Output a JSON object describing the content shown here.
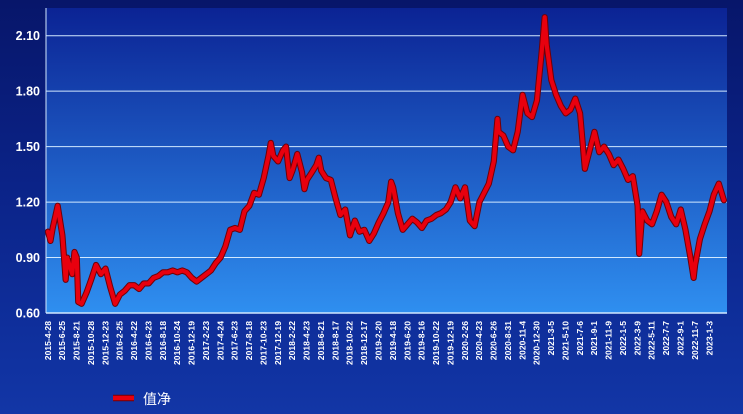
{
  "chart_data": {
    "type": "line",
    "y_ticks": [
      "0.60",
      "0.90",
      "1.20",
      "1.50",
      "1.80",
      "2.10"
    ],
    "ylim": [
      0.6,
      2.25
    ],
    "grid": true,
    "legend_position": "bottom-left",
    "x_ticks": [
      "2015-4-28",
      "2015-6-25",
      "2015-8-21",
      "2015-10-28",
      "2015-12-23",
      "2016-2-25",
      "2016-4-22",
      "2016-6-23",
      "2016-8-18",
      "2016-10-24",
      "2016-12-19",
      "2017-2-23",
      "2017-4-24",
      "2017-6-23",
      "2017-8-18",
      "2017-10-23",
      "2017-12-19",
      "2018-2-22",
      "2018-4-23",
      "2018-6-21",
      "2018-8-17",
      "2018-10-22",
      "2018-12-17",
      "2019-2-20",
      "2019-4-18",
      "2019-6-20",
      "2019-8-16",
      "2019-10-22",
      "2019-12-19",
      "2020-2-26",
      "2020-4-23",
      "2020-6-26",
      "2020-8-31",
      "2020-11-4",
      "2020-12-30",
      "2021-3-5",
      "2021-5-10",
      "2021-7-6",
      "2021-9-1",
      "2021-11-9",
      "2022-1-5",
      "2022-3-9",
      "2022-5-11",
      "2022-7-7",
      "2022-9-1",
      "2022-11-7",
      "2023-1-3"
    ],
    "series": [
      {
        "name": "值净",
        "color": "#e8000e",
        "points": [
          {
            "x": "2015-4-28",
            "y": 1.04
          },
          {
            "x": "2015-5-8",
            "y": 0.99
          },
          {
            "x": "2015-5-17",
            "y": 1.06
          },
          {
            "x": "2015-6-6",
            "y": 1.18
          },
          {
            "x": "2015-6-25",
            "y": 1.02
          },
          {
            "x": "2015-7-8",
            "y": 0.78
          },
          {
            "x": "2015-7-14",
            "y": 0.9
          },
          {
            "x": "2015-8-3",
            "y": 0.81
          },
          {
            "x": "2015-8-12",
            "y": 0.93
          },
          {
            "x": "2015-8-21",
            "y": 0.9
          },
          {
            "x": "2015-8-28",
            "y": 0.66
          },
          {
            "x": "2015-9-13",
            "y": 0.65
          },
          {
            "x": "2015-10-6",
            "y": 0.71
          },
          {
            "x": "2015-10-28",
            "y": 0.78
          },
          {
            "x": "2015-11-16",
            "y": 0.86
          },
          {
            "x": "2015-12-5",
            "y": 0.81
          },
          {
            "x": "2015-12-23",
            "y": 0.84
          },
          {
            "x": "2016-1-13",
            "y": 0.74
          },
          {
            "x": "2016-2-4",
            "y": 0.65
          },
          {
            "x": "2016-2-25",
            "y": 0.7
          },
          {
            "x": "2016-3-15",
            "y": 0.72
          },
          {
            "x": "2016-4-3",
            "y": 0.75
          },
          {
            "x": "2016-4-22",
            "y": 0.75
          },
          {
            "x": "2016-5-13",
            "y": 0.73
          },
          {
            "x": "2016-6-2",
            "y": 0.76
          },
          {
            "x": "2016-6-23",
            "y": 0.76
          },
          {
            "x": "2016-7-12",
            "y": 0.79
          },
          {
            "x": "2016-7-31",
            "y": 0.8
          },
          {
            "x": "2016-8-18",
            "y": 0.82
          },
          {
            "x": "2016-9-9",
            "y": 0.82
          },
          {
            "x": "2016-10-2",
            "y": 0.83
          },
          {
            "x": "2016-10-24",
            "y": 0.82
          },
          {
            "x": "2016-11-12",
            "y": 0.83
          },
          {
            "x": "2016-11-30",
            "y": 0.82
          },
          {
            "x": "2016-12-19",
            "y": 0.79
          },
          {
            "x": "2017-1-10",
            "y": 0.77
          },
          {
            "x": "2017-2-1",
            "y": 0.79
          },
          {
            "x": "2017-2-23",
            "y": 0.81
          },
          {
            "x": "2017-3-15",
            "y": 0.83
          },
          {
            "x": "2017-4-4",
            "y": 0.87
          },
          {
            "x": "2017-4-24",
            "y": 0.9
          },
          {
            "x": "2017-5-14",
            "y": 0.96
          },
          {
            "x": "2017-6-3",
            "y": 1.05
          },
          {
            "x": "2017-6-23",
            "y": 1.06
          },
          {
            "x": "2017-7-12",
            "y": 1.05
          },
          {
            "x": "2017-7-30",
            "y": 1.15
          },
          {
            "x": "2017-8-18",
            "y": 1.18
          },
          {
            "x": "2017-9-9",
            "y": 1.25
          },
          {
            "x": "2017-10-1",
            "y": 1.24
          },
          {
            "x": "2017-10-23",
            "y": 1.33
          },
          {
            "x": "2017-11-11",
            "y": 1.45
          },
          {
            "x": "2017-11-20",
            "y": 1.52
          },
          {
            "x": "2017-11-30",
            "y": 1.45
          },
          {
            "x": "2017-12-19",
            "y": 1.42
          },
          {
            "x": "2018-1-10",
            "y": 1.48
          },
          {
            "x": "2018-1-24",
            "y": 1.5
          },
          {
            "x": "2018-1-31",
            "y": 1.42
          },
          {
            "x": "2018-2-9",
            "y": 1.33
          },
          {
            "x": "2018-2-22",
            "y": 1.37
          },
          {
            "x": "2018-3-14",
            "y": 1.46
          },
          {
            "x": "2018-4-3",
            "y": 1.36
          },
          {
            "x": "2018-4-13",
            "y": 1.27
          },
          {
            "x": "2018-4-23",
            "y": 1.32
          },
          {
            "x": "2018-5-13",
            "y": 1.36
          },
          {
            "x": "2018-6-1",
            "y": 1.4
          },
          {
            "x": "2018-6-11",
            "y": 1.44
          },
          {
            "x": "2018-6-21",
            "y": 1.37
          },
          {
            "x": "2018-7-10",
            "y": 1.33
          },
          {
            "x": "2018-7-29",
            "y": 1.32
          },
          {
            "x": "2018-8-17",
            "y": 1.22
          },
          {
            "x": "2018-9-8",
            "y": 1.13
          },
          {
            "x": "2018-9-30",
            "y": 1.16
          },
          {
            "x": "2018-10-22",
            "y": 1.02
          },
          {
            "x": "2018-11-10",
            "y": 1.1
          },
          {
            "x": "2018-11-28",
            "y": 1.04
          },
          {
            "x": "2018-12-17",
            "y": 1.05
          },
          {
            "x": "2019-1-8",
            "y": 0.99
          },
          {
            "x": "2019-1-29",
            "y": 1.03
          },
          {
            "x": "2019-2-20",
            "y": 1.09
          },
          {
            "x": "2019-3-11",
            "y": 1.14
          },
          {
            "x": "2019-3-30",
            "y": 1.2
          },
          {
            "x": "2019-4-10",
            "y": 1.31
          },
          {
            "x": "2019-4-18",
            "y": 1.28
          },
          {
            "x": "2019-5-9",
            "y": 1.14
          },
          {
            "x": "2019-5-30",
            "y": 1.05
          },
          {
            "x": "2019-6-20",
            "y": 1.08
          },
          {
            "x": "2019-7-9",
            "y": 1.11
          },
          {
            "x": "2019-7-28",
            "y": 1.09
          },
          {
            "x": "2019-8-16",
            "y": 1.06
          },
          {
            "x": "2019-9-7",
            "y": 1.1
          },
          {
            "x": "2019-9-30",
            "y": 1.11
          },
          {
            "x": "2019-10-22",
            "y": 1.13
          },
          {
            "x": "2019-11-10",
            "y": 1.14
          },
          {
            "x": "2019-11-30",
            "y": 1.16
          },
          {
            "x": "2019-12-19",
            "y": 1.2
          },
          {
            "x": "2020-1-11",
            "y": 1.28
          },
          {
            "x": "2020-2-3",
            "y": 1.22
          },
          {
            "x": "2020-2-26",
            "y": 1.28
          },
          {
            "x": "2020-3-16",
            "y": 1.1
          },
          {
            "x": "2020-4-4",
            "y": 1.07
          },
          {
            "x": "2020-4-23",
            "y": 1.2
          },
          {
            "x": "2020-5-14",
            "y": 1.25
          },
          {
            "x": "2020-6-4",
            "y": 1.3
          },
          {
            "x": "2020-6-26",
            "y": 1.42
          },
          {
            "x": "2020-7-13",
            "y": 1.65
          },
          {
            "x": "2020-7-18",
            "y": 1.58
          },
          {
            "x": "2020-8-9",
            "y": 1.56
          },
          {
            "x": "2020-8-31",
            "y": 1.5
          },
          {
            "x": "2020-9-22",
            "y": 1.48
          },
          {
            "x": "2020-10-13",
            "y": 1.58
          },
          {
            "x": "2020-11-4",
            "y": 1.78
          },
          {
            "x": "2020-11-23",
            "y": 1.68
          },
          {
            "x": "2020-12-11",
            "y": 1.66
          },
          {
            "x": "2020-12-30",
            "y": 1.75
          },
          {
            "x": "2021-1-21",
            "y": 2.02
          },
          {
            "x": "2021-2-3",
            "y": 2.2
          },
          {
            "x": "2021-2-12",
            "y": 2.05
          },
          {
            "x": "2021-3-5",
            "y": 1.86
          },
          {
            "x": "2021-3-27",
            "y": 1.78
          },
          {
            "x": "2021-4-18",
            "y": 1.72
          },
          {
            "x": "2021-5-10",
            "y": 1.68
          },
          {
            "x": "2021-5-29",
            "y": 1.7
          },
          {
            "x": "2021-6-17",
            "y": 1.76
          },
          {
            "x": "2021-7-6",
            "y": 1.68
          },
          {
            "x": "2021-7-25",
            "y": 1.38
          },
          {
            "x": "2021-8-13",
            "y": 1.48
          },
          {
            "x": "2021-9-1",
            "y": 1.58
          },
          {
            "x": "2021-9-24",
            "y": 1.47
          },
          {
            "x": "2021-10-17",
            "y": 1.5
          },
          {
            "x": "2021-11-9",
            "y": 1.46
          },
          {
            "x": "2021-11-28",
            "y": 1.4
          },
          {
            "x": "2021-12-17",
            "y": 1.43
          },
          {
            "x": "2022-1-5",
            "y": 1.38
          },
          {
            "x": "2022-1-26",
            "y": 1.32
          },
          {
            "x": "2022-2-16",
            "y": 1.34
          },
          {
            "x": "2022-3-9",
            "y": 1.18
          },
          {
            "x": "2022-3-16",
            "y": 0.92
          },
          {
            "x": "2022-3-30",
            "y": 1.15
          },
          {
            "x": "2022-4-20",
            "y": 1.1
          },
          {
            "x": "2022-5-11",
            "y": 1.08
          },
          {
            "x": "2022-5-30",
            "y": 1.15
          },
          {
            "x": "2022-6-18",
            "y": 1.24
          },
          {
            "x": "2022-7-7",
            "y": 1.2
          },
          {
            "x": "2022-7-26",
            "y": 1.12
          },
          {
            "x": "2022-8-14",
            "y": 1.08
          },
          {
            "x": "2022-9-1",
            "y": 1.16
          },
          {
            "x": "2022-9-23",
            "y": 1.05
          },
          {
            "x": "2022-10-16",
            "y": 0.9
          },
          {
            "x": "2022-10-31",
            "y": 0.79
          },
          {
            "x": "2022-11-7",
            "y": 0.86
          },
          {
            "x": "2022-11-26",
            "y": 1.0
          },
          {
            "x": "2022-12-15",
            "y": 1.08
          },
          {
            "x": "2023-1-3",
            "y": 1.15
          },
          {
            "x": "2023-1-20",
            "y": 1.24
          },
          {
            "x": "2023-2-9",
            "y": 1.3
          },
          {
            "x": "2023-3-1",
            "y": 1.21
          }
        ]
      }
    ]
  },
  "colors": {
    "plot_top": "#0b2394",
    "plot_bottom": "#2f8ff0",
    "grid": "#d2e8ff",
    "text": "#ffffff"
  }
}
